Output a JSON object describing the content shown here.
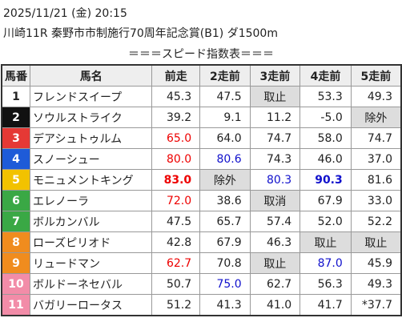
{
  "header": {
    "datetime": "2025/11/21 (金) 20:15",
    "race": "川崎11R 秦野市市制施行70周年記念賞(B1) ダ1500m",
    "title": "＝＝＝スピード指数表＝＝＝"
  },
  "table": {
    "columns": [
      "馬番",
      "馬名",
      "前走",
      "2走前",
      "3走前",
      "4走前",
      "5走前"
    ],
    "rows": [
      [
        "1",
        "フレンドスイープ",
        "45.3",
        "47.5",
        "取止",
        "53.3",
        "49.3"
      ],
      [
        "2",
        "ソウルストライク",
        "39.2",
        "9.1",
        "11.2",
        "-5.0",
        "除外"
      ],
      [
        "3",
        "デアシュトゥルム",
        "65.0",
        "64.0",
        "74.7",
        "58.0",
        "74.7"
      ],
      [
        "4",
        "スノーシュー",
        "80.0",
        "80.6",
        "74.3",
        "46.0",
        "37.0"
      ],
      [
        "5",
        "モニュメントキング",
        "83.0",
        "除外",
        "80.3",
        "90.3",
        "81.6"
      ],
      [
        "6",
        "エレノーラ",
        "72.0",
        "38.6",
        "取消",
        "67.9",
        "33.0"
      ],
      [
        "7",
        "ボルカンバル",
        "47.5",
        "65.7",
        "57.4",
        "52.0",
        "52.2"
      ],
      [
        "8",
        "ローズピリオド",
        "42.8",
        "67.9",
        "46.3",
        "取止",
        "取止"
      ],
      [
        "9",
        "リュードマン",
        "62.7",
        "70.8",
        "取止",
        "87.0",
        "45.9"
      ],
      [
        "10",
        "ボルドーネセバル",
        "50.7",
        "75.0",
        "62.7",
        "56.3",
        "49.3"
      ],
      [
        "11",
        "バガリーロータス",
        "51.2",
        "41.3",
        "41.0",
        "41.7",
        "*37.7"
      ]
    ]
  }
}
